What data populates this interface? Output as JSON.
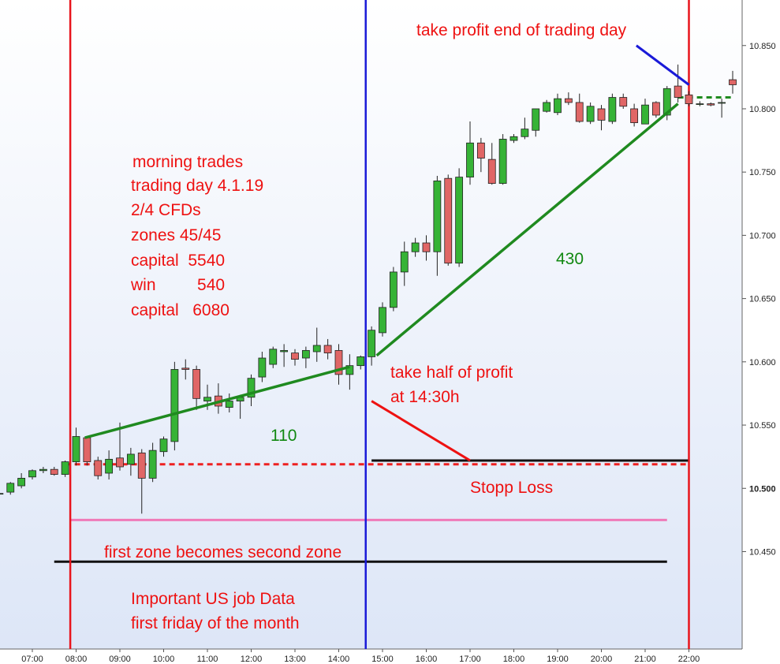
{
  "chart_data": {
    "type": "candlestick",
    "instrument_note": "",
    "x_ticks": [
      "07:00",
      "08:00",
      "09:00",
      "10:00",
      "11:00",
      "12:00",
      "13:00",
      "14:00",
      "15:00",
      "16:00",
      "17:00",
      "18:00",
      "19:00",
      "20:00",
      "21:00",
      "22:00"
    ],
    "y_ticks": [
      "10.450",
      "10.500",
      "10.550",
      "10.600",
      "10.650",
      "10.700",
      "10.750",
      "10.800",
      "10.850"
    ],
    "y_tick_values": [
      10.45,
      10.5,
      10.55,
      10.6,
      10.65,
      10.7,
      10.75,
      10.8,
      10.85
    ],
    "ylim": [
      10.373,
      10.886
    ],
    "grid": false,
    "candles": [
      {
        "t": "06:15",
        "o": 10.496,
        "h": 10.498,
        "l": 10.494,
        "c": 10.496
      },
      {
        "t": "06:30",
        "o": 10.497,
        "h": 10.505,
        "l": 10.495,
        "c": 10.504
      },
      {
        "t": "06:45",
        "o": 10.502,
        "h": 10.512,
        "l": 10.5,
        "c": 10.508
      },
      {
        "t": "07:00",
        "o": 10.509,
        "h": 10.515,
        "l": 10.507,
        "c": 10.514
      },
      {
        "t": "07:15",
        "o": 10.514,
        "h": 10.517,
        "l": 10.512,
        "c": 10.515
      },
      {
        "t": "07:30",
        "o": 10.515,
        "h": 10.517,
        "l": 10.51,
        "c": 10.511
      },
      {
        "t": "07:45",
        "o": 10.511,
        "h": 10.522,
        "l": 10.509,
        "c": 10.521
      },
      {
        "t": "08:00",
        "o": 10.521,
        "h": 10.548,
        "l": 10.518,
        "c": 10.541
      },
      {
        "t": "08:15",
        "o": 10.54,
        "h": 10.541,
        "l": 10.518,
        "c": 10.521
      },
      {
        "t": "08:30",
        "o": 10.522,
        "h": 10.525,
        "l": 10.507,
        "c": 10.51
      },
      {
        "t": "08:45",
        "o": 10.512,
        "h": 10.53,
        "l": 10.507,
        "c": 10.523
      },
      {
        "t": "09:00",
        "o": 10.524,
        "h": 10.552,
        "l": 10.514,
        "c": 10.517
      },
      {
        "t": "09:15",
        "o": 10.519,
        "h": 10.532,
        "l": 10.51,
        "c": 10.527
      },
      {
        "t": "09:30",
        "o": 10.528,
        "h": 10.531,
        "l": 10.48,
        "c": 10.508
      },
      {
        "t": "09:45",
        "o": 10.508,
        "h": 10.536,
        "l": 10.505,
        "c": 10.53
      },
      {
        "t": "10:00",
        "o": 10.529,
        "h": 10.541,
        "l": 10.525,
        "c": 10.539
      },
      {
        "t": "10:15",
        "o": 10.537,
        "h": 10.6,
        "l": 10.53,
        "c": 10.594
      },
      {
        "t": "10:30",
        "o": 10.595,
        "h": 10.602,
        "l": 10.586,
        "c": 10.594
      },
      {
        "t": "10:45",
        "o": 10.594,
        "h": 10.597,
        "l": 10.562,
        "c": 10.571
      },
      {
        "t": "11:00",
        "o": 10.569,
        "h": 10.582,
        "l": 10.562,
        "c": 10.572
      },
      {
        "t": "11:15",
        "o": 10.573,
        "h": 10.583,
        "l": 10.559,
        "c": 10.565
      },
      {
        "t": "11:30",
        "o": 10.564,
        "h": 10.575,
        "l": 10.56,
        "c": 10.569
      },
      {
        "t": "11:45",
        "o": 10.569,
        "h": 10.574,
        "l": 10.555,
        "c": 10.572
      },
      {
        "t": "12:00",
        "o": 10.572,
        "h": 10.59,
        "l": 10.565,
        "c": 10.587
      },
      {
        "t": "12:15",
        "o": 10.588,
        "h": 10.608,
        "l": 10.584,
        "c": 10.603
      },
      {
        "t": "12:30",
        "o": 10.598,
        "h": 10.612,
        "l": 10.595,
        "c": 10.61
      },
      {
        "t": "12:45",
        "o": 10.608,
        "h": 10.614,
        "l": 10.596,
        "c": 10.609
      },
      {
        "t": "13:00",
        "o": 10.607,
        "h": 10.61,
        "l": 10.597,
        "c": 10.602
      },
      {
        "t": "13:15",
        "o": 10.603,
        "h": 10.612,
        "l": 10.595,
        "c": 10.609
      },
      {
        "t": "13:30",
        "o": 10.608,
        "h": 10.627,
        "l": 10.6,
        "c": 10.613
      },
      {
        "t": "13:45",
        "o": 10.613,
        "h": 10.618,
        "l": 10.602,
        "c": 10.607
      },
      {
        "t": "14:00",
        "o": 10.609,
        "h": 10.614,
        "l": 10.582,
        "c": 10.59
      },
      {
        "t": "14:15",
        "o": 10.59,
        "h": 10.606,
        "l": 10.578,
        "c": 10.597
      },
      {
        "t": "14:30",
        "o": 10.597,
        "h": 10.605,
        "l": 10.594,
        "c": 10.604
      },
      {
        "t": "14:45",
        "o": 10.604,
        "h": 10.628,
        "l": 10.597,
        "c": 10.625
      },
      {
        "t": "15:00",
        "o": 10.623,
        "h": 10.647,
        "l": 10.62,
        "c": 10.643
      },
      {
        "t": "15:15",
        "o": 10.643,
        "h": 10.675,
        "l": 10.64,
        "c": 10.671
      },
      {
        "t": "15:30",
        "o": 10.671,
        "h": 10.695,
        "l": 10.66,
        "c": 10.687
      },
      {
        "t": "15:45",
        "o": 10.687,
        "h": 10.698,
        "l": 10.683,
        "c": 10.694
      },
      {
        "t": "16:00",
        "o": 10.694,
        "h": 10.7,
        "l": 10.68,
        "c": 10.687
      },
      {
        "t": "16:15",
        "o": 10.687,
        "h": 10.747,
        "l": 10.668,
        "c": 10.743
      },
      {
        "t": "16:30",
        "o": 10.745,
        "h": 10.748,
        "l": 10.676,
        "c": 10.678
      },
      {
        "t": "16:45",
        "o": 10.678,
        "h": 10.753,
        "l": 10.675,
        "c": 10.746
      },
      {
        "t": "17:00",
        "o": 10.746,
        "h": 10.79,
        "l": 10.74,
        "c": 10.773
      },
      {
        "t": "17:15",
        "o": 10.773,
        "h": 10.777,
        "l": 10.75,
        "c": 10.761
      },
      {
        "t": "17:30",
        "o": 10.76,
        "h": 10.773,
        "l": 10.74,
        "c": 10.741
      },
      {
        "t": "17:45",
        "o": 10.741,
        "h": 10.78,
        "l": 10.74,
        "c": 10.776
      },
      {
        "t": "18:00",
        "o": 10.775,
        "h": 10.78,
        "l": 10.773,
        "c": 10.778
      },
      {
        "t": "18:15",
        "o": 10.778,
        "h": 10.793,
        "l": 10.776,
        "c": 10.784
      },
      {
        "t": "18:30",
        "o": 10.783,
        "h": 10.8,
        "l": 10.778,
        "c": 10.8
      },
      {
        "t": "18:45",
        "o": 10.798,
        "h": 10.807,
        "l": 10.797,
        "c": 10.805
      },
      {
        "t": "19:00",
        "o": 10.797,
        "h": 10.812,
        "l": 10.795,
        "c": 10.808
      },
      {
        "t": "19:15",
        "o": 10.808,
        "h": 10.813,
        "l": 10.803,
        "c": 10.805
      },
      {
        "t": "19:30",
        "o": 10.805,
        "h": 10.812,
        "l": 10.789,
        "c": 10.79
      },
      {
        "t": "19:45",
        "o": 10.79,
        "h": 10.805,
        "l": 10.788,
        "c": 10.802
      },
      {
        "t": "20:00",
        "o": 10.8,
        "h": 10.803,
        "l": 10.783,
        "c": 10.791
      },
      {
        "t": "20:15",
        "o": 10.79,
        "h": 10.812,
        "l": 10.788,
        "c": 10.809
      },
      {
        "t": "20:30",
        "o": 10.809,
        "h": 10.812,
        "l": 10.8,
        "c": 10.802
      },
      {
        "t": "20:45",
        "o": 10.8,
        "h": 10.804,
        "l": 10.786,
        "c": 10.789
      },
      {
        "t": "21:00",
        "o": 10.788,
        "h": 10.808,
        "l": 10.788,
        "c": 10.803
      },
      {
        "t": "21:15",
        "o": 10.805,
        "h": 10.806,
        "l": 10.793,
        "c": 10.795
      },
      {
        "t": "21:30",
        "o": 10.795,
        "h": 10.818,
        "l": 10.791,
        "c": 10.816
      },
      {
        "t": "21:45",
        "o": 10.818,
        "h": 10.835,
        "l": 10.805,
        "c": 10.809
      },
      {
        "t": "22:00",
        "o": 10.811,
        "h": 10.814,
        "l": 10.802,
        "c": 10.804
      },
      {
        "t": "22:15",
        "o": 10.804,
        "h": 10.806,
        "l": 10.802,
        "c": 10.804
      },
      {
        "t": "22:30",
        "o": 10.804,
        "h": 10.805,
        "l": 10.802,
        "c": 10.803
      },
      {
        "t": "22:45",
        "o": 10.805,
        "h": 10.808,
        "l": 10.793,
        "c": 10.805
      },
      {
        "t": "23:00",
        "o": 10.823,
        "h": 10.83,
        "l": 10.812,
        "c": 10.819
      }
    ],
    "vertical_lines": [
      {
        "t": "07:52",
        "color": "#e8141c"
      },
      {
        "t": "14:37",
        "color": "#1a1ad8"
      },
      {
        "t": "22:00",
        "color": "#e8141c"
      }
    ],
    "trend_lines": [
      {
        "t1": "08:12",
        "v1": 10.54,
        "t2": "14:15",
        "v2": 10.596,
        "color": "#1f8a1f"
      },
      {
        "t1": "14:52",
        "v1": 10.605,
        "t2": "21:45",
        "v2": 10.804,
        "color": "#1f8a1f"
      }
    ],
    "level_lines": [
      {
        "t1": "07:45",
        "t2": "22:00",
        "v": 10.519,
        "color": "#ee2020",
        "dashed": true
      },
      {
        "t1": "21:45",
        "t2": "23:00",
        "v": 10.809,
        "color": "#1f8a1f",
        "dashed": true
      },
      {
        "t1": "14:45",
        "t2": "22:00",
        "v": 10.522,
        "color": "#111111",
        "dashed": false
      },
      {
        "t1": "07:52",
        "t2": "21:30",
        "v": 10.475,
        "color": "#f07ab8",
        "dashed": false
      },
      {
        "t1": "07:30",
        "t2": "21:30",
        "v": 10.442,
        "color": "#111111",
        "dashed": false
      }
    ],
    "pointers": [
      {
        "t1": "14:45",
        "v1": 10.569,
        "t2": "17:00",
        "v2": 10.522,
        "color": "#ee1111"
      },
      {
        "t1": "20:48",
        "v1": 10.85,
        "t2": "22:00",
        "v2": 10.819,
        "color": "#1a1ad8"
      }
    ],
    "annotations": {
      "morning_trades": "morning trades",
      "trading_day": "trading day 4.1.19",
      "cfds": "2/4 CFDs",
      "zones": "zones 45/45",
      "capital_start": "capital  5540",
      "win": "win         540",
      "capital_end": "capital   6080",
      "take_profit_end": "take profit end of trading day",
      "take_half": "take half of profit",
      "take_half_time": "at 14:30h",
      "stop_loss": "Stopp Loss",
      "zone_change": "first zone becomes second zone",
      "job_data": "Important US job Data",
      "first_friday": "first friday of the month",
      "gain_morning": "110",
      "gain_afternoon": "430"
    },
    "colors": {
      "up_fill": "#36b336",
      "down_fill": "#e06666",
      "background_top": "#ffffff",
      "background_bottom": "#dde6f7"
    }
  }
}
